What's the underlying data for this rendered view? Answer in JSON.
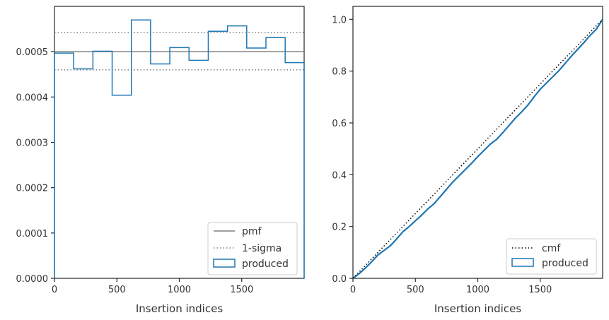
{
  "chart_data": [
    {
      "type": "line",
      "xlabel": "Insertion indices",
      "ylabel": "",
      "xlim": [
        0,
        2000
      ],
      "ylim": [
        0,
        0.0006
      ],
      "xticks": [
        "0",
        "500",
        "1000",
        "1500"
      ],
      "xtick_values": [
        0,
        500,
        1000,
        1500
      ],
      "yticks": [
        "0.0000",
        "0.0001",
        "0.0002",
        "0.0003",
        "0.0004",
        "0.0005"
      ],
      "ytick_values": [
        0,
        0.0001,
        0.0002,
        0.0003,
        0.0004,
        0.0005
      ],
      "pmf": 0.0005,
      "sigma_upper": 0.000542,
      "sigma_lower": 0.00046,
      "bin_edges": [
        0,
        154,
        308,
        462,
        616,
        770,
        924,
        1078,
        1232,
        1386,
        1540,
        1694,
        1848,
        2000
      ],
      "produced": [
        0.000497,
        0.000462,
        0.000501,
        0.000404,
        0.00057,
        0.000473,
        0.000509,
        0.000481,
        0.000545,
        0.000557,
        0.000508,
        0.000531,
        0.000476
      ],
      "legend": [
        "pmf",
        "1-sigma",
        "produced"
      ],
      "legend_position": "lower-right",
      "colors": {
        "pmf": "#808080",
        "sigma": "#808080",
        "produced": "#1f77b4"
      }
    },
    {
      "type": "line",
      "xlabel": "Insertion indices",
      "ylabel": "",
      "xlim": [
        0,
        2000
      ],
      "ylim": [
        0,
        1.05
      ],
      "xticks": [
        "0",
        "500",
        "1000",
        "1500"
      ],
      "xtick_values": [
        0,
        500,
        1000,
        1500
      ],
      "yticks": [
        "0.0",
        "0.2",
        "0.4",
        "0.6",
        "0.8",
        "1.0"
      ],
      "ytick_values": [
        0,
        0.2,
        0.4,
        0.6,
        0.8,
        1.0
      ],
      "cmf": {
        "x": [
          0,
          2000
        ],
        "y": [
          0,
          1.0
        ]
      },
      "produced": {
        "x": [
          0,
          50,
          100,
          150,
          200,
          250,
          300,
          350,
          400,
          450,
          500,
          550,
          600,
          650,
          700,
          750,
          800,
          850,
          900,
          950,
          1000,
          1050,
          1100,
          1150,
          1200,
          1250,
          1300,
          1350,
          1400,
          1450,
          1500,
          1550,
          1600,
          1650,
          1700,
          1750,
          1800,
          1850,
          1900,
          1950,
          2000
        ],
        "y": [
          0,
          0.018,
          0.04,
          0.064,
          0.09,
          0.108,
          0.126,
          0.152,
          0.18,
          0.2,
          0.222,
          0.244,
          0.268,
          0.288,
          0.316,
          0.344,
          0.372,
          0.396,
          0.42,
          0.444,
          0.47,
          0.494,
          0.518,
          0.536,
          0.562,
          0.59,
          0.618,
          0.642,
          0.668,
          0.7,
          0.73,
          0.754,
          0.778,
          0.802,
          0.83,
          0.858,
          0.884,
          0.91,
          0.938,
          0.962,
          1.0
        ]
      },
      "legend": [
        "cmf",
        "produced"
      ],
      "legend_position": "lower-right",
      "colors": {
        "cmf": "#000000",
        "produced": "#1f77b4"
      }
    }
  ]
}
